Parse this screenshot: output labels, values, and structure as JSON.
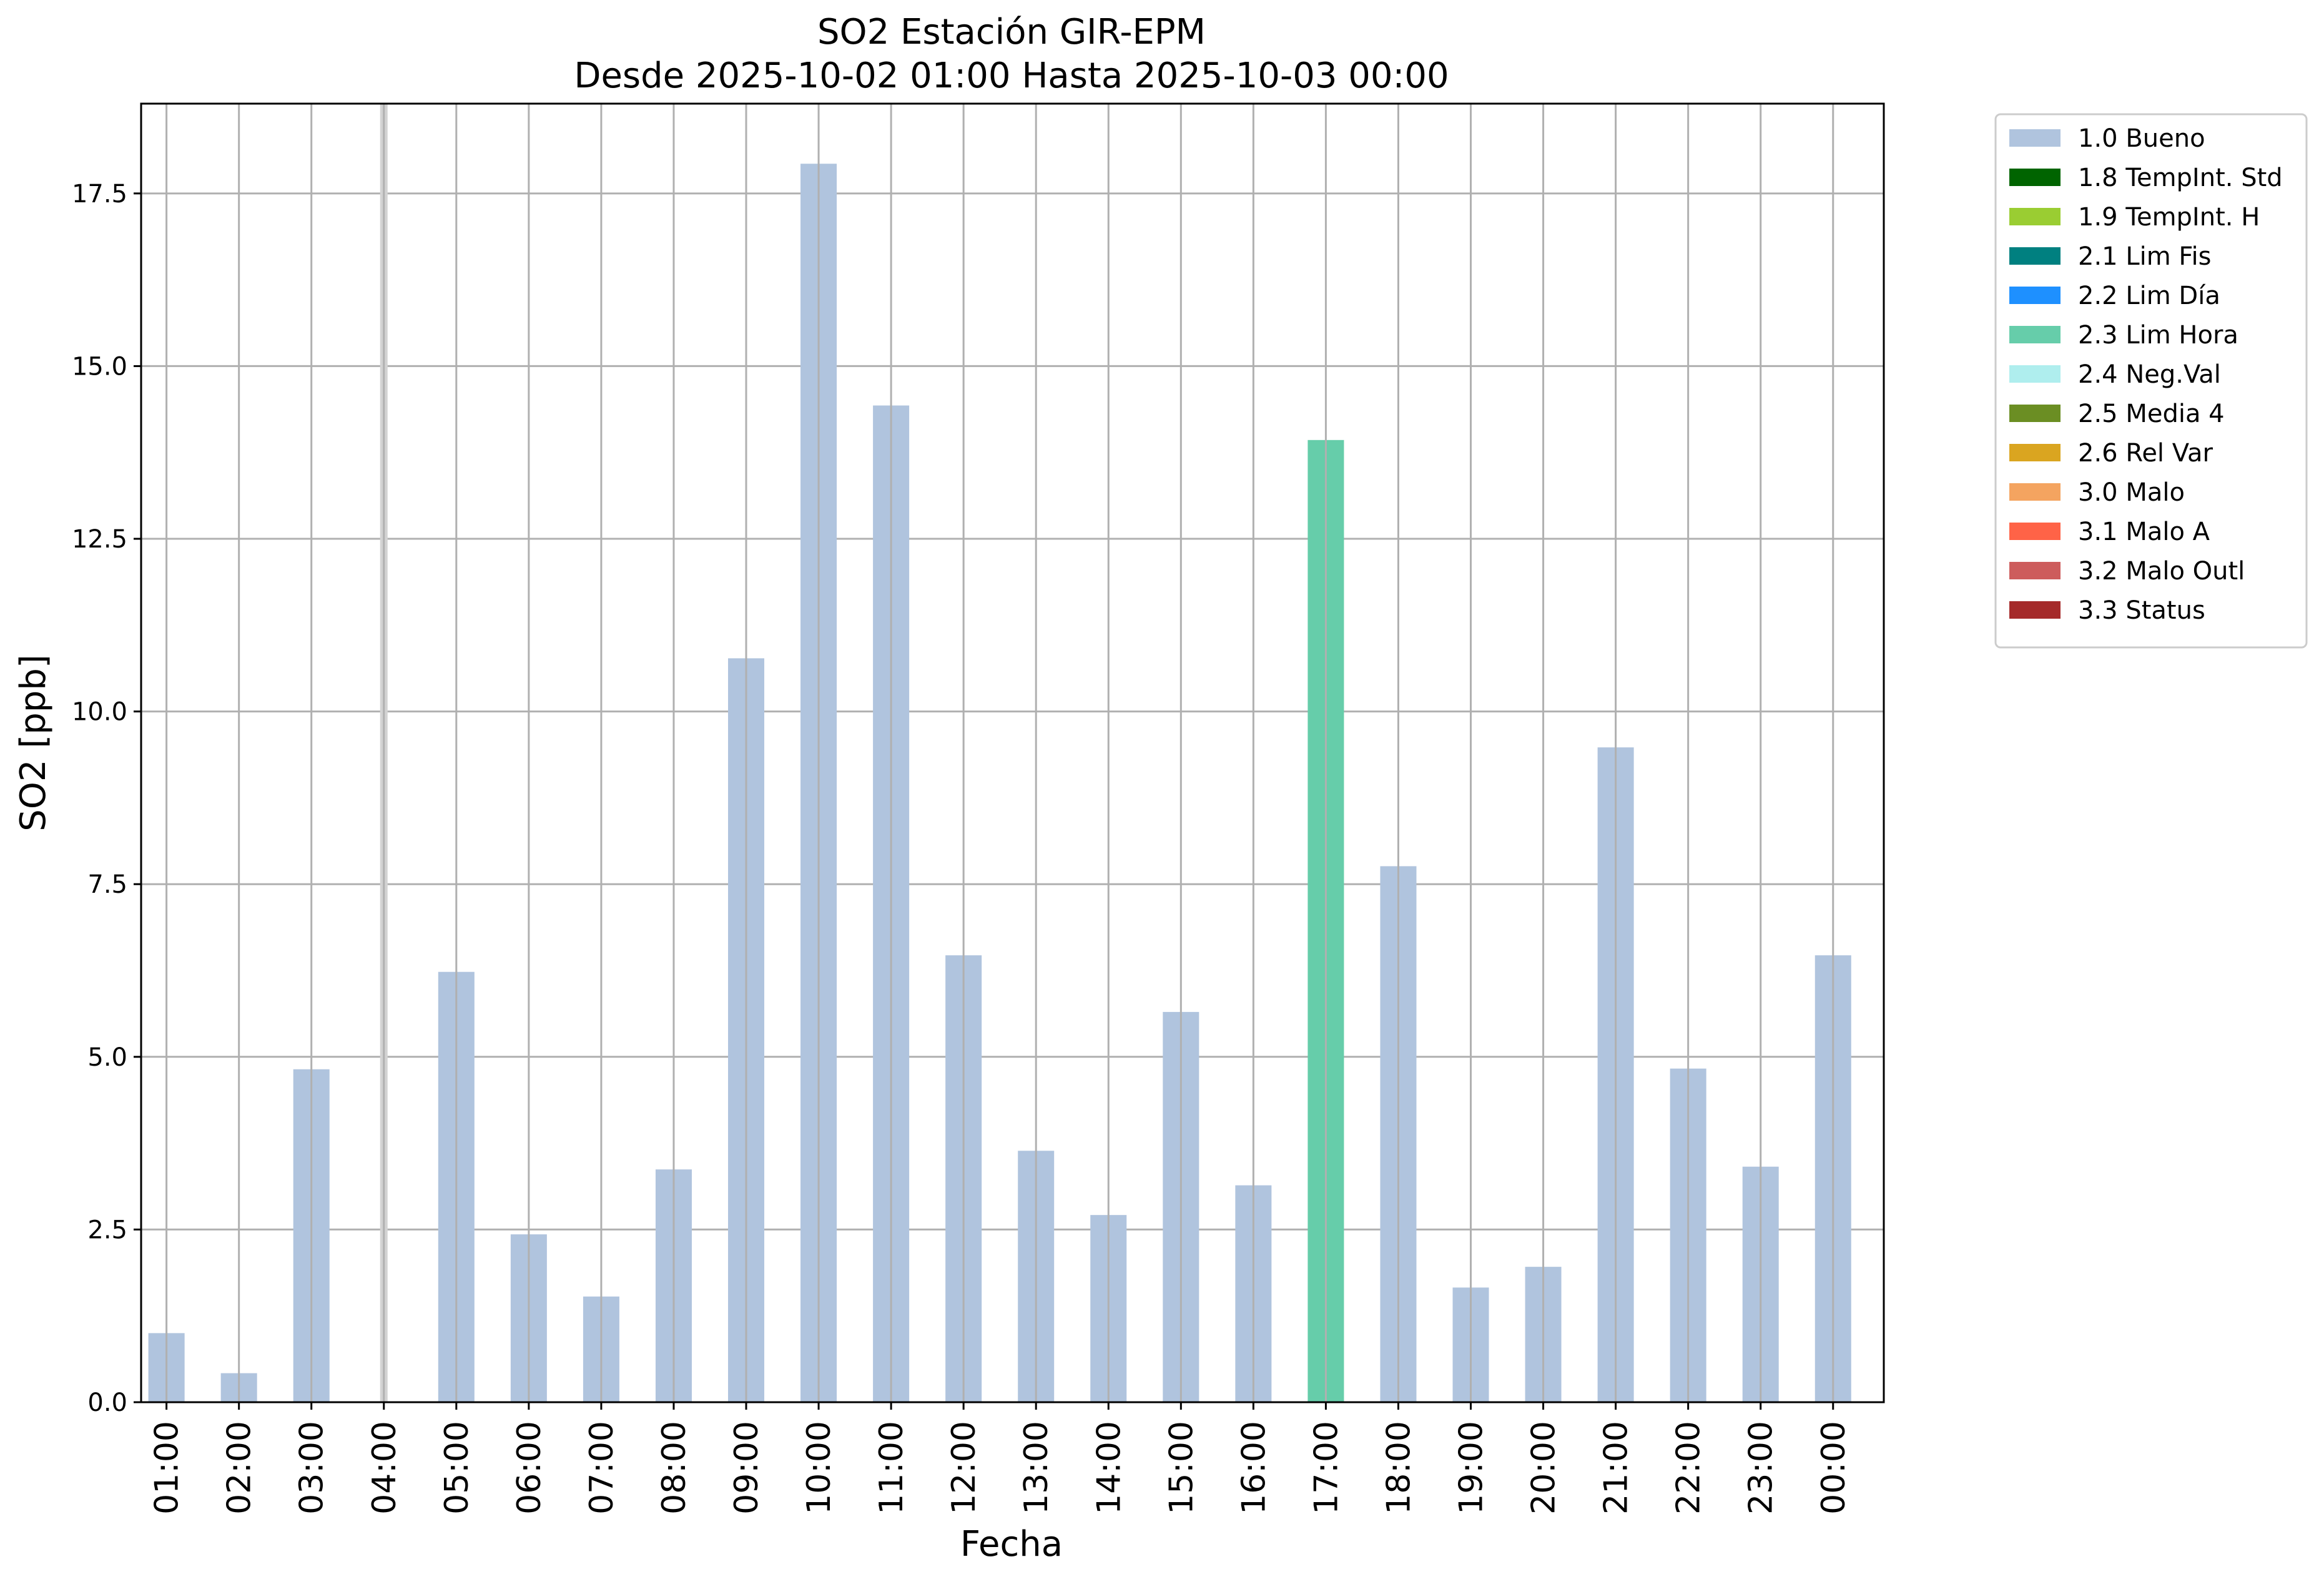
{
  "chart_data": {
    "type": "bar",
    "title": "SO2 Estación GIR-EPM",
    "subtitle": "Desde 2025-10-02 01:00 Hasta 2025-10-03 00:00",
    "xlabel": "Fecha",
    "ylabel": "SO2 [ppb]",
    "ylim": [
      0,
      18.8
    ],
    "yticks": [
      "0.0",
      "2.5",
      "5.0",
      "7.5",
      "10.0",
      "12.5",
      "15.0",
      "17.5"
    ],
    "grid": true,
    "legend_position": "outside-top-right",
    "categories": [
      "01:00",
      "02:00",
      "03:00",
      "04:00",
      "05:00",
      "06:00",
      "07:00",
      "08:00",
      "09:00",
      "10:00",
      "11:00",
      "12:00",
      "13:00",
      "14:00",
      "15:00",
      "16:00",
      "17:00",
      "18:00",
      "19:00",
      "20:00",
      "21:00",
      "22:00",
      "23:00",
      "00:00"
    ],
    "values": [
      1.0,
      0.42,
      4.82,
      null,
      6.23,
      2.43,
      1.53,
      3.37,
      10.77,
      17.93,
      14.43,
      6.47,
      3.64,
      2.71,
      5.65,
      3.14,
      13.93,
      7.76,
      1.66,
      1.96,
      9.48,
      4.83,
      3.41,
      6.47
    ],
    "flags": [
      "1.0 Bueno",
      "1.0 Bueno",
      "1.0 Bueno",
      null,
      "1.0 Bueno",
      "1.0 Bueno",
      "1.0 Bueno",
      "1.0 Bueno",
      "1.0 Bueno",
      "1.0 Bueno",
      "1.0 Bueno",
      "1.0 Bueno",
      "1.0 Bueno",
      "1.0 Bueno",
      "1.0 Bueno",
      "1.0 Bueno",
      "2.3 Lim Hora",
      "1.0 Bueno",
      "1.0 Bueno",
      "1.0 Bueno",
      "1.0 Bueno",
      "1.0 Bueno",
      "1.0 Bueno",
      "1.0 Bueno"
    ],
    "missing_marker_category": "04:00",
    "legend": [
      {
        "name": "1.0 Bueno",
        "color": "#b0c4de"
      },
      {
        "name": "1.8 TempInt. Std",
        "color": "#006400"
      },
      {
        "name": "1.9 TempInt. H",
        "color": "#9acd32"
      },
      {
        "name": "2.1 Lim Fis",
        "color": "#008080"
      },
      {
        "name": "2.2 Lim Día",
        "color": "#1e90ff"
      },
      {
        "name": "2.3 Lim Hora",
        "color": "#66cdaa"
      },
      {
        "name": "2.4 Neg.Val",
        "color": "#afeeee"
      },
      {
        "name": "2.5 Media 4",
        "color": "#6b8e23"
      },
      {
        "name": "2.6 Rel Var",
        "color": "#daa520"
      },
      {
        "name": "3.0 Malo",
        "color": "#f4a460"
      },
      {
        "name": "3.1 Malo A",
        "color": "#ff6347"
      },
      {
        "name": "3.2 Malo Outl",
        "color": "#cd5c5c"
      },
      {
        "name": "3.3 Status",
        "color": "#a52a2a"
      }
    ],
    "colors": {
      "grid": "#b0b0b0",
      "missing_marker": "#d3d3d3",
      "axes": "#000000"
    }
  }
}
